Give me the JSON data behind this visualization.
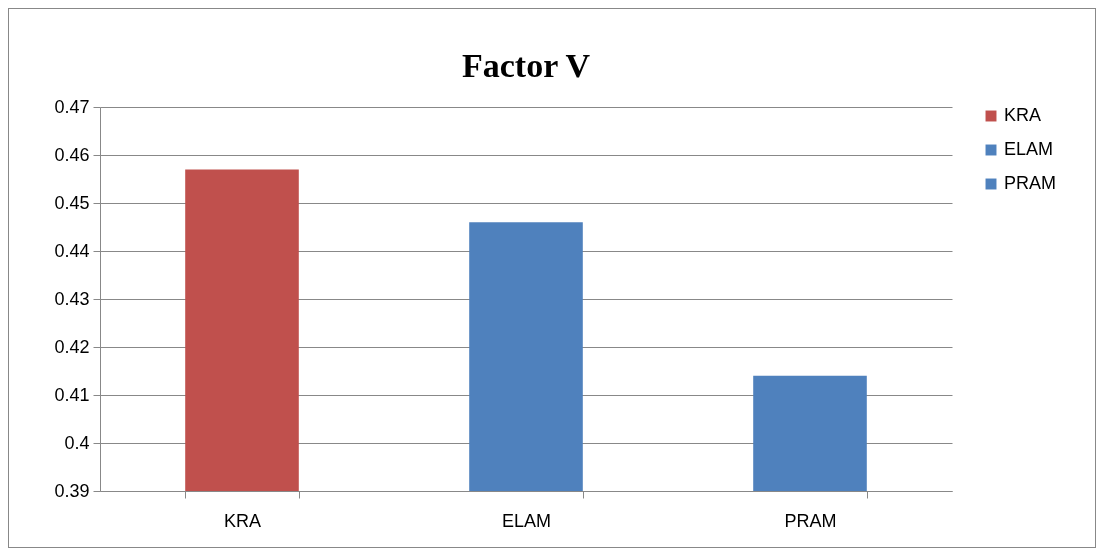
{
  "chart_data": {
    "type": "bar",
    "title": "Factor V",
    "categories": [
      "KRA",
      "ELAM",
      "PRAM"
    ],
    "series": [
      {
        "name": "KRA",
        "color": "#c0504d",
        "values": [
          0.457,
          null,
          null
        ]
      },
      {
        "name": "ELAM",
        "color": "#4f81bd",
        "values": [
          null,
          0.446,
          null
        ]
      },
      {
        "name": "PRAM",
        "color": "#4f81bd",
        "values": [
          null,
          null,
          0.414
        ]
      }
    ],
    "ylim": [
      0.39,
      0.47
    ],
    "yticks": [
      0.39,
      0.4,
      0.41,
      0.42,
      0.43,
      0.44,
      0.45,
      0.46,
      0.47
    ],
    "grid": "y",
    "legend": "right"
  }
}
